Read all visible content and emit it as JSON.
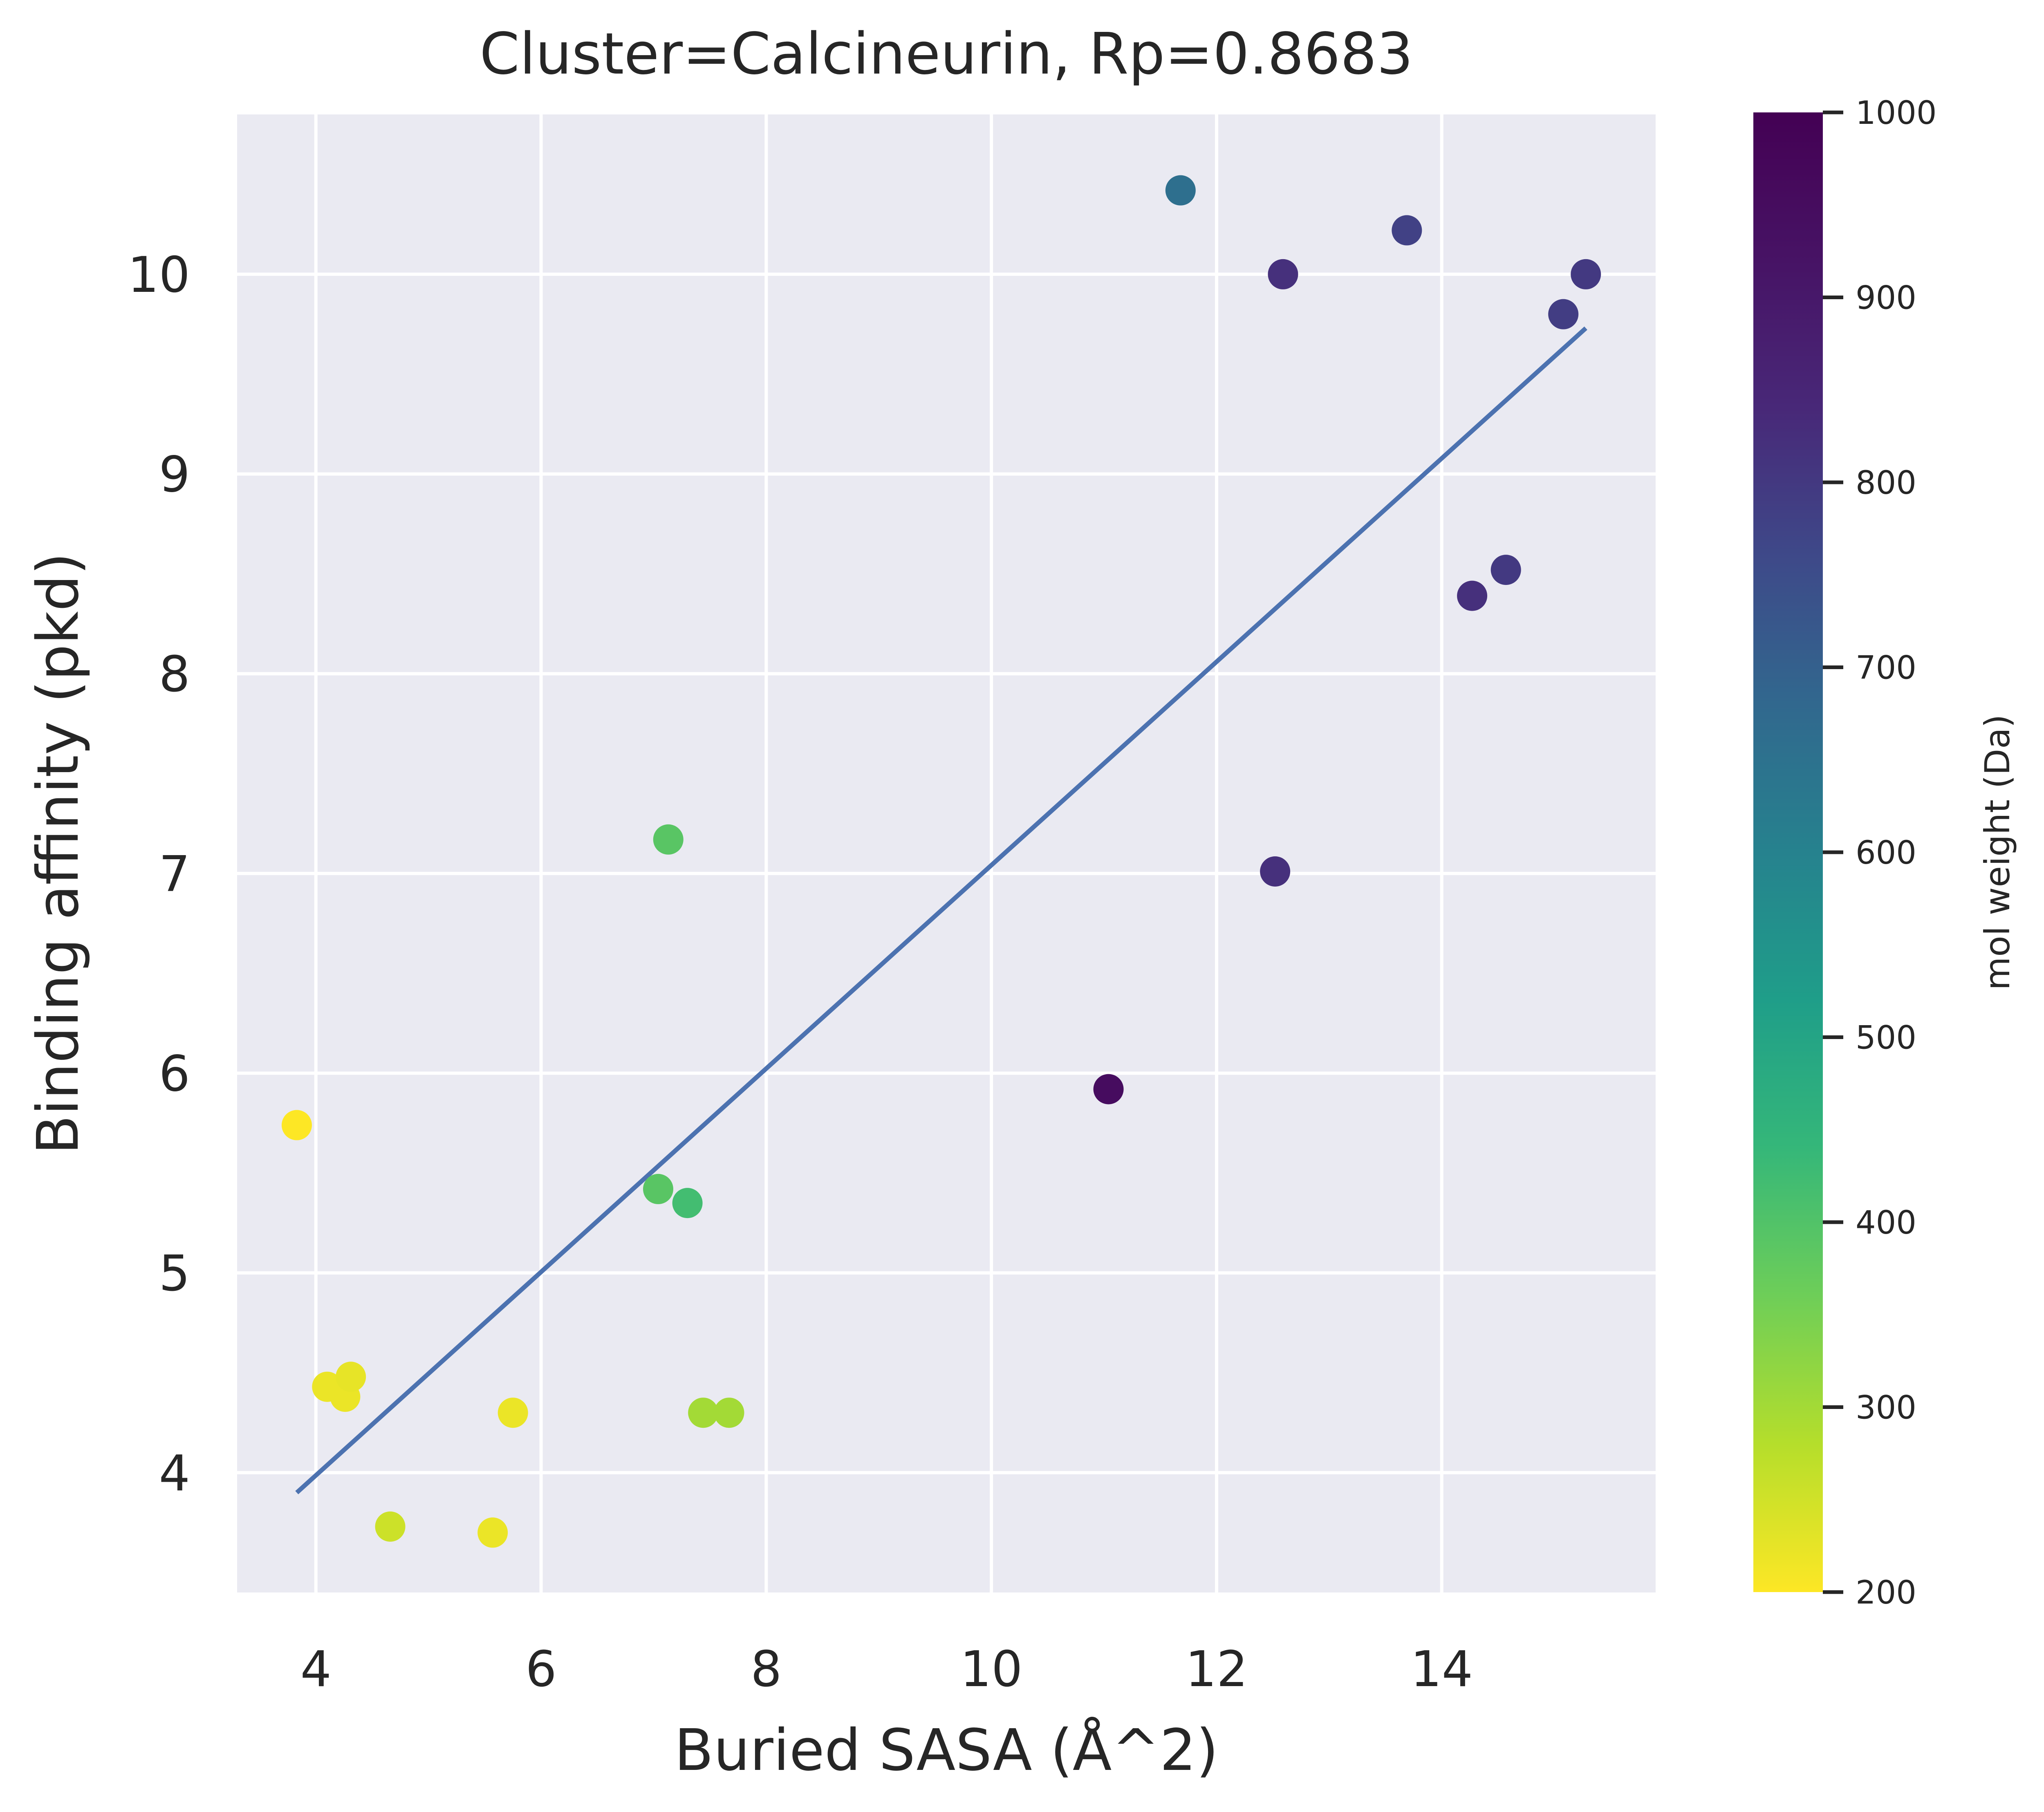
{
  "chart_data": {
    "type": "scatter",
    "title": "Cluster=Calcineurin, Rp=0.8683",
    "xlabel": "Buried SASA (Å^2)",
    "ylabel": "Binding affinity (pkd)",
    "xlim": [
      3.3,
      15.9
    ],
    "ylim": [
      3.4,
      10.8
    ],
    "xticks": [
      4,
      6,
      8,
      10,
      12,
      14
    ],
    "yticks": [
      4,
      5,
      6,
      7,
      8,
      9,
      10
    ],
    "grid": true,
    "colorbar": {
      "label": "mol weight (Da)",
      "min": 200,
      "max": 1000,
      "ticks": [
        200,
        300,
        400,
        500,
        600,
        700,
        800,
        900,
        1000
      ],
      "colormap": "viridis"
    },
    "points": [
      {
        "x": 3.83,
        "y": 5.74,
        "c": 200
      },
      {
        "x": 4.1,
        "y": 4.43,
        "c": 220
      },
      {
        "x": 4.26,
        "y": 4.38,
        "c": 220
      },
      {
        "x": 4.31,
        "y": 4.48,
        "c": 225
      },
      {
        "x": 4.66,
        "y": 3.73,
        "c": 255
      },
      {
        "x": 5.57,
        "y": 3.7,
        "c": 220
      },
      {
        "x": 5.75,
        "y": 4.3,
        "c": 220
      },
      {
        "x": 7.04,
        "y": 5.42,
        "c": 390
      },
      {
        "x": 7.13,
        "y": 7.17,
        "c": 390
      },
      {
        "x": 7.3,
        "y": 5.35,
        "c": 420
      },
      {
        "x": 7.44,
        "y": 4.3,
        "c": 300
      },
      {
        "x": 7.67,
        "y": 4.3,
        "c": 300
      },
      {
        "x": 11.04,
        "y": 5.92,
        "c": 950
      },
      {
        "x": 11.68,
        "y": 10.42,
        "c": 660
      },
      {
        "x": 12.52,
        "y": 7.01,
        "c": 820
      },
      {
        "x": 12.59,
        "y": 10.0,
        "c": 820
      },
      {
        "x": 13.69,
        "y": 10.22,
        "c": 780
      },
      {
        "x": 14.27,
        "y": 8.39,
        "c": 820
      },
      {
        "x": 14.57,
        "y": 8.52,
        "c": 800
      },
      {
        "x": 15.08,
        "y": 9.8,
        "c": 790
      },
      {
        "x": 15.28,
        "y": 10.0,
        "c": 800
      }
    ],
    "fit_line": {
      "x": [
        3.83,
        15.28
      ],
      "y": [
        3.9,
        9.73
      ],
      "color": "#4c72b0"
    }
  }
}
